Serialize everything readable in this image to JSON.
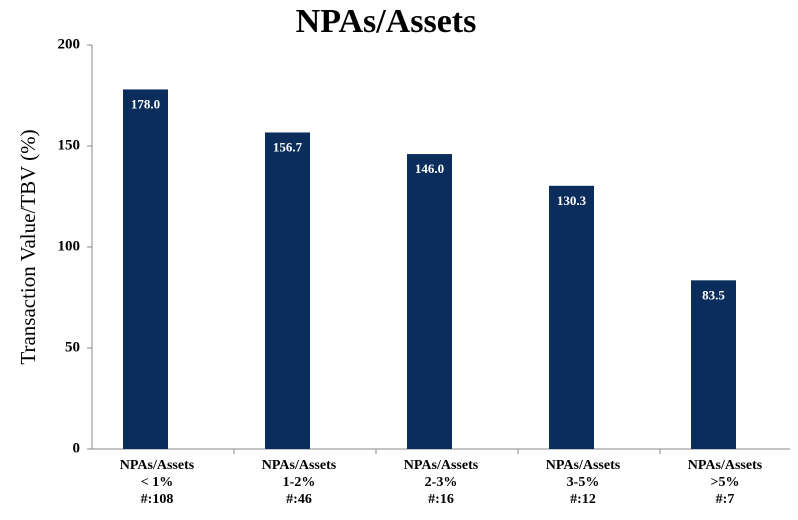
{
  "chart_data": {
    "type": "bar",
    "title": "NPAs/Assets",
    "y_label": "Transaction Value/TBV (%)",
    "categories": [
      [
        "NPAs/Assets",
        "< 1%",
        "#:108"
      ],
      [
        "NPAs/Assets",
        "1-2%",
        "#:46"
      ],
      [
        "NPAs/Assets",
        "2-3%",
        "#:16"
      ],
      [
        "NPAs/Assets",
        "3-5%",
        "#:12"
      ],
      [
        "NPAs/Assets",
        ">5%",
        "#:7"
      ]
    ],
    "values": [
      178.0,
      156.7,
      146.0,
      130.3,
      83.5
    ],
    "value_labels": [
      "178.0",
      "156.7",
      "146.0",
      "130.3",
      "83.5"
    ],
    "color": "#0a2d5c",
    "ylim": [
      0,
      200
    ],
    "yticks": [
      0,
      50,
      100,
      150,
      200
    ],
    "grid": false
  }
}
